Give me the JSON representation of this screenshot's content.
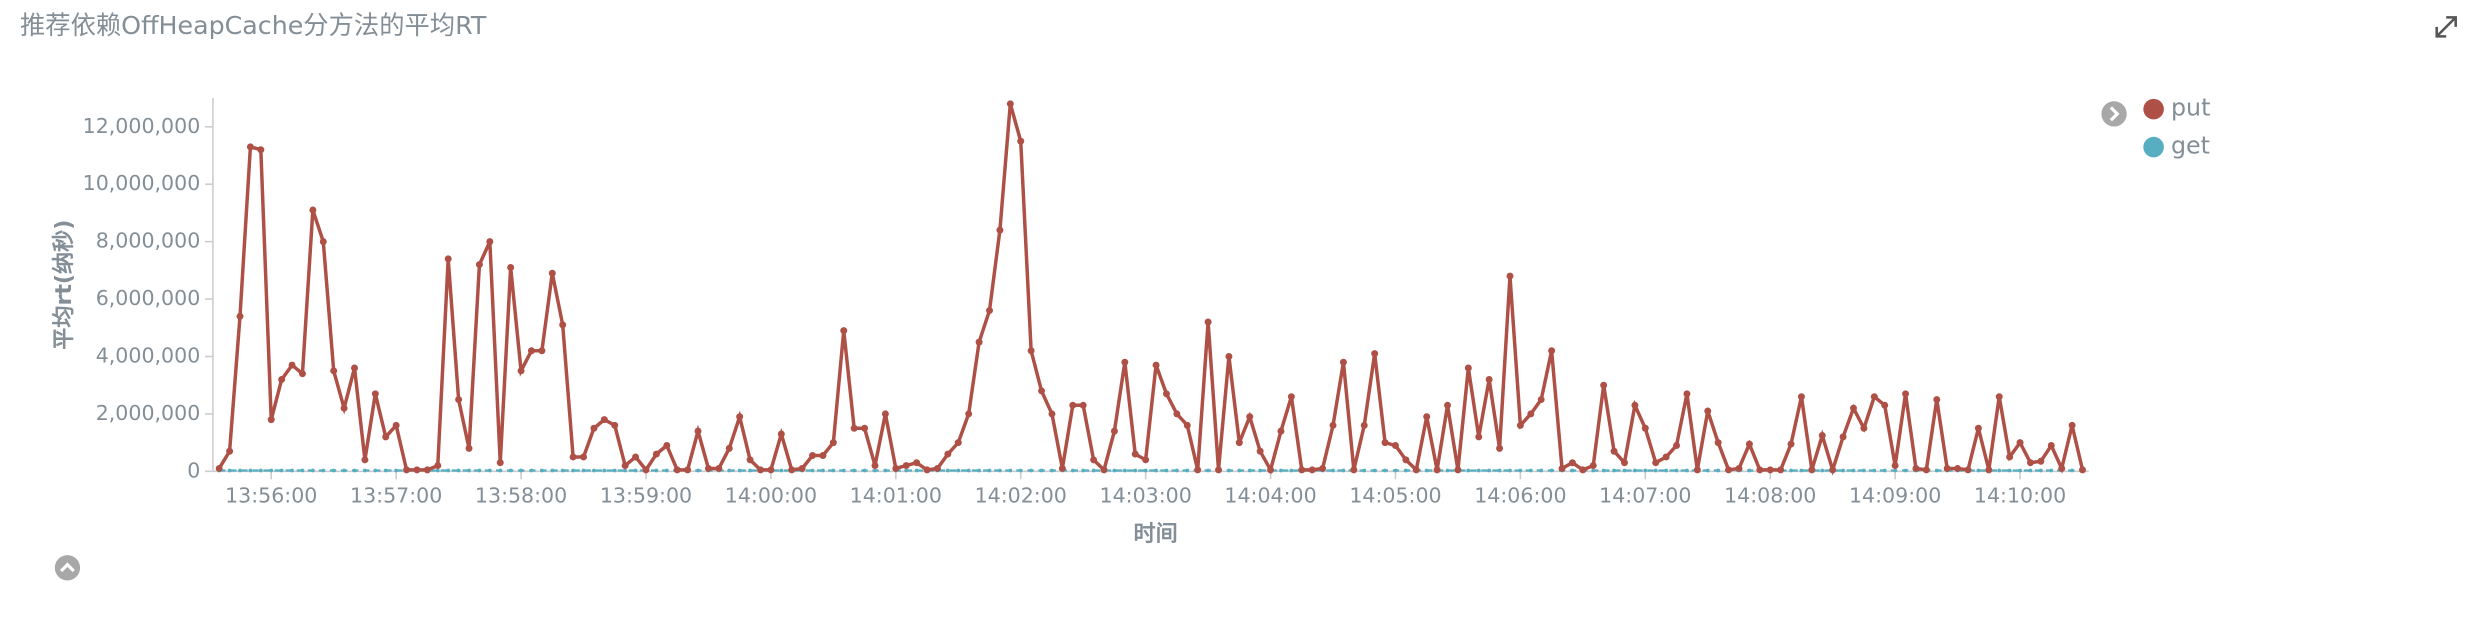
{
  "chart_data": {
    "type": "line",
    "title": "推荐依赖OffHeapCache分方法的平均RT",
    "x_label": "时间",
    "y_label": "平均rt(纳秒)",
    "x": [
      "13:55:35",
      "13:55:40",
      "13:55:45",
      "13:55:50",
      "13:55:55",
      "13:56:00",
      "13:56:05",
      "13:56:10",
      "13:56:15",
      "13:56:20",
      "13:56:25",
      "13:56:30",
      "13:56:35",
      "13:56:40",
      "13:56:45",
      "13:56:50",
      "13:56:55",
      "13:57:00",
      "13:57:05",
      "13:57:10",
      "13:57:15",
      "13:57:20",
      "13:57:25",
      "13:57:30",
      "13:57:35",
      "13:57:40",
      "13:57:45",
      "13:57:50",
      "13:57:55",
      "13:58:00",
      "13:58:05",
      "13:58:10",
      "13:58:15",
      "13:58:20",
      "13:58:25",
      "13:58:30",
      "13:58:35",
      "13:58:40",
      "13:58:45",
      "13:58:50",
      "13:58:55",
      "13:59:00",
      "13:59:05",
      "13:59:10",
      "13:59:15",
      "13:59:20",
      "13:59:25",
      "13:59:30",
      "13:59:35",
      "13:59:40",
      "13:59:45",
      "13:59:50",
      "13:59:55",
      "14:00:00",
      "14:00:05",
      "14:00:10",
      "14:00:15",
      "14:00:20",
      "14:00:25",
      "14:00:30",
      "14:00:35",
      "14:00:40",
      "14:00:45",
      "14:00:50",
      "14:00:55",
      "14:01:00",
      "14:01:05",
      "14:01:10",
      "14:01:15",
      "14:01:20",
      "14:01:25",
      "14:01:30",
      "14:01:35",
      "14:01:40",
      "14:01:45",
      "14:01:50",
      "14:01:55",
      "14:02:00",
      "14:02:05",
      "14:02:10",
      "14:02:15",
      "14:02:20",
      "14:02:25",
      "14:02:30",
      "14:02:35",
      "14:02:40",
      "14:02:45",
      "14:02:50",
      "14:02:55",
      "14:03:00",
      "14:03:05",
      "14:03:10",
      "14:03:15",
      "14:03:20",
      "14:03:25",
      "14:03:30",
      "14:03:35",
      "14:03:40",
      "14:03:45",
      "14:03:50",
      "14:03:55",
      "14:04:00",
      "14:04:05",
      "14:04:10",
      "14:04:15",
      "14:04:20",
      "14:04:25",
      "14:04:30",
      "14:04:35",
      "14:04:40",
      "14:04:45",
      "14:04:50",
      "14:04:55",
      "14:05:00",
      "14:05:05",
      "14:05:10",
      "14:05:15",
      "14:05:20",
      "14:05:25",
      "14:05:30",
      "14:05:35",
      "14:05:40",
      "14:05:45",
      "14:05:50",
      "14:05:55",
      "14:06:00",
      "14:06:05",
      "14:06:10",
      "14:06:15",
      "14:06:20",
      "14:06:25",
      "14:06:30",
      "14:06:35",
      "14:06:40",
      "14:06:45",
      "14:06:50",
      "14:06:55",
      "14:07:00",
      "14:07:05",
      "14:07:10",
      "14:07:15",
      "14:07:20",
      "14:07:25",
      "14:07:30",
      "14:07:35",
      "14:07:40",
      "14:07:45",
      "14:07:50",
      "14:07:55",
      "14:08:00",
      "14:08:05",
      "14:08:10",
      "14:08:15",
      "14:08:20",
      "14:08:25",
      "14:08:30",
      "14:08:35",
      "14:08:40",
      "14:08:45",
      "14:08:50",
      "14:08:55",
      "14:09:00",
      "14:09:05",
      "14:09:10",
      "14:09:15",
      "14:09:20",
      "14:09:25",
      "14:09:30",
      "14:09:35",
      "14:09:40",
      "14:09:45",
      "14:09:50",
      "14:09:55",
      "14:10:00",
      "14:10:05",
      "14:10:10",
      "14:10:15",
      "14:10:20",
      "14:10:25",
      "14:10:30"
    ],
    "series": [
      {
        "name": "put",
        "color": "#ae5046",
        "values": [
          100000,
          700000,
          5400000,
          11300000,
          11200000,
          1800000,
          3200000,
          3700000,
          3400000,
          9100000,
          8000000,
          3500000,
          2200000,
          3600000,
          400000,
          2700000,
          1200000,
          1600000,
          50000,
          50000,
          50000,
          200000,
          7400000,
          2500000,
          800000,
          7200000,
          8000000,
          300000,
          7100000,
          3500000,
          4200000,
          4200000,
          6900000,
          5100000,
          500000,
          500000,
          1500000,
          1800000,
          1600000,
          200000,
          500000,
          50000,
          600000,
          900000,
          50000,
          50000,
          1400000,
          100000,
          100000,
          800000,
          1900000,
          400000,
          50000,
          50000,
          1300000,
          50000,
          100000,
          550000,
          550000,
          1000000,
          4900000,
          1500000,
          1500000,
          200000,
          2000000,
          100000,
          200000,
          300000,
          50000,
          100000,
          600000,
          1000000,
          2000000,
          4500000,
          5600000,
          8400000,
          12800000,
          11500000,
          4200000,
          2800000,
          2000000,
          100000,
          2300000,
          2300000,
          400000,
          50000,
          1400000,
          3800000,
          600000,
          400000,
          3700000,
          2700000,
          2000000,
          1600000,
          50000,
          5200000,
          50000,
          4000000,
          1000000,
          1900000,
          700000,
          50000,
          1400000,
          2600000,
          50000,
          50000,
          100000,
          1600000,
          3800000,
          50000,
          1600000,
          4100000,
          1000000,
          900000,
          400000,
          50000,
          1900000,
          50000,
          2300000,
          50000,
          3600000,
          1200000,
          3200000,
          800000,
          6800000,
          1600000,
          2000000,
          2500000,
          4200000,
          100000,
          300000,
          50000,
          200000,
          3000000,
          700000,
          300000,
          2300000,
          1500000,
          300000,
          500000,
          900000,
          2700000,
          50000,
          2100000,
          1000000,
          50000,
          100000,
          950000,
          50000,
          50000,
          50000,
          950000,
          2600000,
          50000,
          1250000,
          50000,
          1200000,
          2200000,
          1500000,
          2600000,
          2300000,
          200000,
          2700000,
          100000,
          50000,
          2500000,
          100000,
          100000,
          50000,
          1500000,
          50000,
          2600000,
          500000,
          1000000,
          300000,
          350000,
          900000,
          100000,
          1600000,
          50000
        ]
      },
      {
        "name": "get",
        "color": "#57aec1",
        "values": [
          30000,
          30000,
          30000,
          30000,
          30000,
          30000,
          30000,
          30000,
          30000,
          30000,
          30000,
          30000,
          30000,
          30000,
          30000,
          30000,
          30000,
          30000,
          30000,
          30000,
          30000,
          30000,
          30000,
          30000,
          30000,
          30000,
          30000,
          30000,
          30000,
          30000,
          30000,
          30000,
          30000,
          30000,
          30000,
          30000,
          30000,
          30000,
          30000,
          30000,
          30000,
          30000,
          30000,
          30000,
          30000,
          30000,
          30000,
          30000,
          30000,
          30000,
          30000,
          30000,
          30000,
          30000,
          30000,
          30000,
          30000,
          30000,
          30000,
          30000,
          30000,
          30000,
          30000,
          30000,
          30000,
          30000,
          30000,
          30000,
          30000,
          30000,
          30000,
          30000,
          30000,
          30000,
          30000,
          30000,
          30000,
          30000,
          30000,
          30000,
          30000,
          30000,
          30000,
          30000,
          30000,
          30000,
          30000,
          30000,
          30000,
          30000,
          30000,
          30000,
          30000,
          30000,
          30000,
          30000,
          30000,
          30000,
          30000,
          30000,
          30000,
          30000,
          30000,
          30000,
          30000,
          30000,
          30000,
          30000,
          30000,
          30000,
          30000,
          30000,
          30000,
          30000,
          30000,
          30000,
          30000,
          30000,
          30000,
          30000,
          30000,
          30000,
          30000,
          30000,
          30000,
          30000,
          30000,
          30000,
          30000,
          30000,
          30000,
          30000,
          30000,
          30000,
          30000,
          30000,
          30000,
          30000,
          30000,
          30000,
          30000,
          30000,
          30000,
          30000,
          30000,
          30000,
          30000,
          30000,
          30000,
          30000,
          30000,
          30000,
          30000,
          30000,
          30000,
          30000,
          30000,
          30000,
          30000,
          30000,
          30000,
          30000,
          30000,
          30000,
          30000,
          30000,
          30000,
          30000,
          30000,
          30000,
          30000,
          30000,
          30000,
          30000,
          30000,
          30000,
          30000,
          30000,
          30000,
          30000
        ]
      }
    ],
    "xlim": [
      "13:55:32",
      "14:10:33"
    ],
    "xticks": [
      "13:56:00",
      "13:57:00",
      "13:58:00",
      "13:59:00",
      "14:00:00",
      "14:01:00",
      "14:02:00",
      "14:03:00",
      "14:04:00",
      "14:05:00",
      "14:06:00",
      "14:07:00",
      "14:08:00",
      "14:09:00",
      "14:10:00"
    ],
    "ylim": [
      0,
      13000000
    ],
    "yticks": [
      0,
      {
        "value": 2000000,
        "label": "2,000,000"
      },
      {
        "value": 4000000,
        "label": "4,000,000"
      },
      {
        "value": 6000000,
        "label": "6,000,000"
      },
      {
        "value": 8000000,
        "label": "8,000,000"
      },
      {
        "value": 10000000,
        "label": "10,000,000"
      },
      {
        "value": 12000000,
        "label": "12,000,000"
      }
    ],
    "legend": "top-right"
  }
}
